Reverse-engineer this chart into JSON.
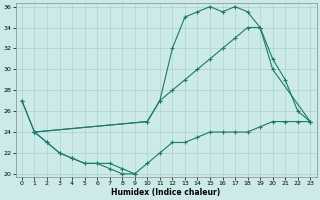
{
  "xlabel": "Humidex (Indice chaleur)",
  "background_color": "#cceae7",
  "grid_color": "#aad4d0",
  "line_color": "#1a7a6e",
  "xlim": [
    0,
    23
  ],
  "ylim": [
    20,
    36
  ],
  "xticks": [
    0,
    1,
    2,
    3,
    4,
    5,
    6,
    7,
    8,
    9,
    10,
    11,
    12,
    13,
    14,
    15,
    16,
    17,
    18,
    19,
    20,
    21,
    22,
    23
  ],
  "yticks": [
    20,
    22,
    24,
    26,
    28,
    30,
    32,
    34,
    36
  ],
  "line_min_x": [
    0,
    1,
    2,
    3,
    4,
    5,
    6,
    7,
    8,
    9
  ],
  "line_min_y": [
    27,
    24,
    23,
    22,
    21.5,
    21,
    21,
    20.5,
    20,
    20
  ],
  "line_lower_x": [
    1,
    2,
    3,
    4,
    5,
    6,
    7,
    8,
    9,
    10,
    11,
    12,
    13,
    14,
    15,
    16,
    17,
    18,
    19,
    20,
    21,
    22,
    23
  ],
  "line_lower_y": [
    24,
    23,
    22,
    21.5,
    21,
    21,
    21,
    20.5,
    20,
    21,
    22,
    23,
    23,
    23.5,
    24,
    24,
    24,
    24,
    24.5,
    25,
    25,
    25,
    25
  ],
  "line_mid_x": [
    1,
    10,
    11,
    12,
    13,
    14,
    15,
    16,
    17,
    18,
    19,
    20,
    23
  ],
  "line_mid_y": [
    24,
    25,
    27,
    28,
    29,
    30,
    31,
    32,
    33,
    34,
    34,
    30,
    25
  ],
  "line_max_x": [
    0,
    1,
    10,
    11,
    12,
    13,
    14,
    15,
    16,
    17,
    18,
    19,
    20,
    21,
    22,
    23
  ],
  "line_max_y": [
    27,
    24,
    25,
    27,
    32,
    35,
    35.5,
    36,
    35.5,
    36,
    35.5,
    34,
    31,
    29,
    26,
    25
  ]
}
